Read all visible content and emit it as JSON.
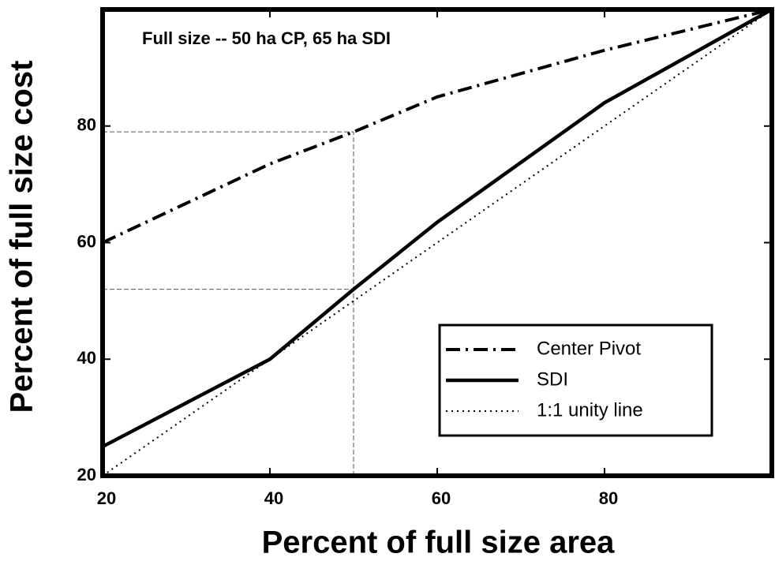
{
  "chart_data": {
    "type": "line",
    "annotation": "Full size -- 50 ha CP,  65 ha SDI",
    "x_label": "Percent of full size area",
    "y_label": "Percent of full size cost",
    "xlim": [
      20,
      100
    ],
    "ylim": [
      20,
      100
    ],
    "xticks": [
      20,
      40,
      60,
      80
    ],
    "yticks": [
      20,
      40,
      60,
      80
    ],
    "reference_lines": [
      {
        "x": 50,
        "y": 79
      },
      {
        "x": 50,
        "y": 52
      }
    ],
    "legend": "lower right",
    "series": [
      {
        "name": "Center Pivot",
        "color": "#000000",
        "dash": "dashdot",
        "x": [
          20,
          40,
          50,
          60,
          80,
          100
        ],
        "values": [
          60,
          73.5,
          79,
          85,
          93,
          100
        ]
      },
      {
        "name": "SDI",
        "color": "#000000",
        "dash": "solid",
        "x": [
          20,
          40,
          50,
          60,
          80,
          100
        ],
        "values": [
          25,
          40,
          52,
          63.5,
          84,
          100
        ]
      },
      {
        "name": " 1:1 unity line",
        "color": "#000000",
        "dash": "dotted",
        "x": [
          20,
          100
        ],
        "values": [
          20,
          100
        ]
      }
    ]
  }
}
